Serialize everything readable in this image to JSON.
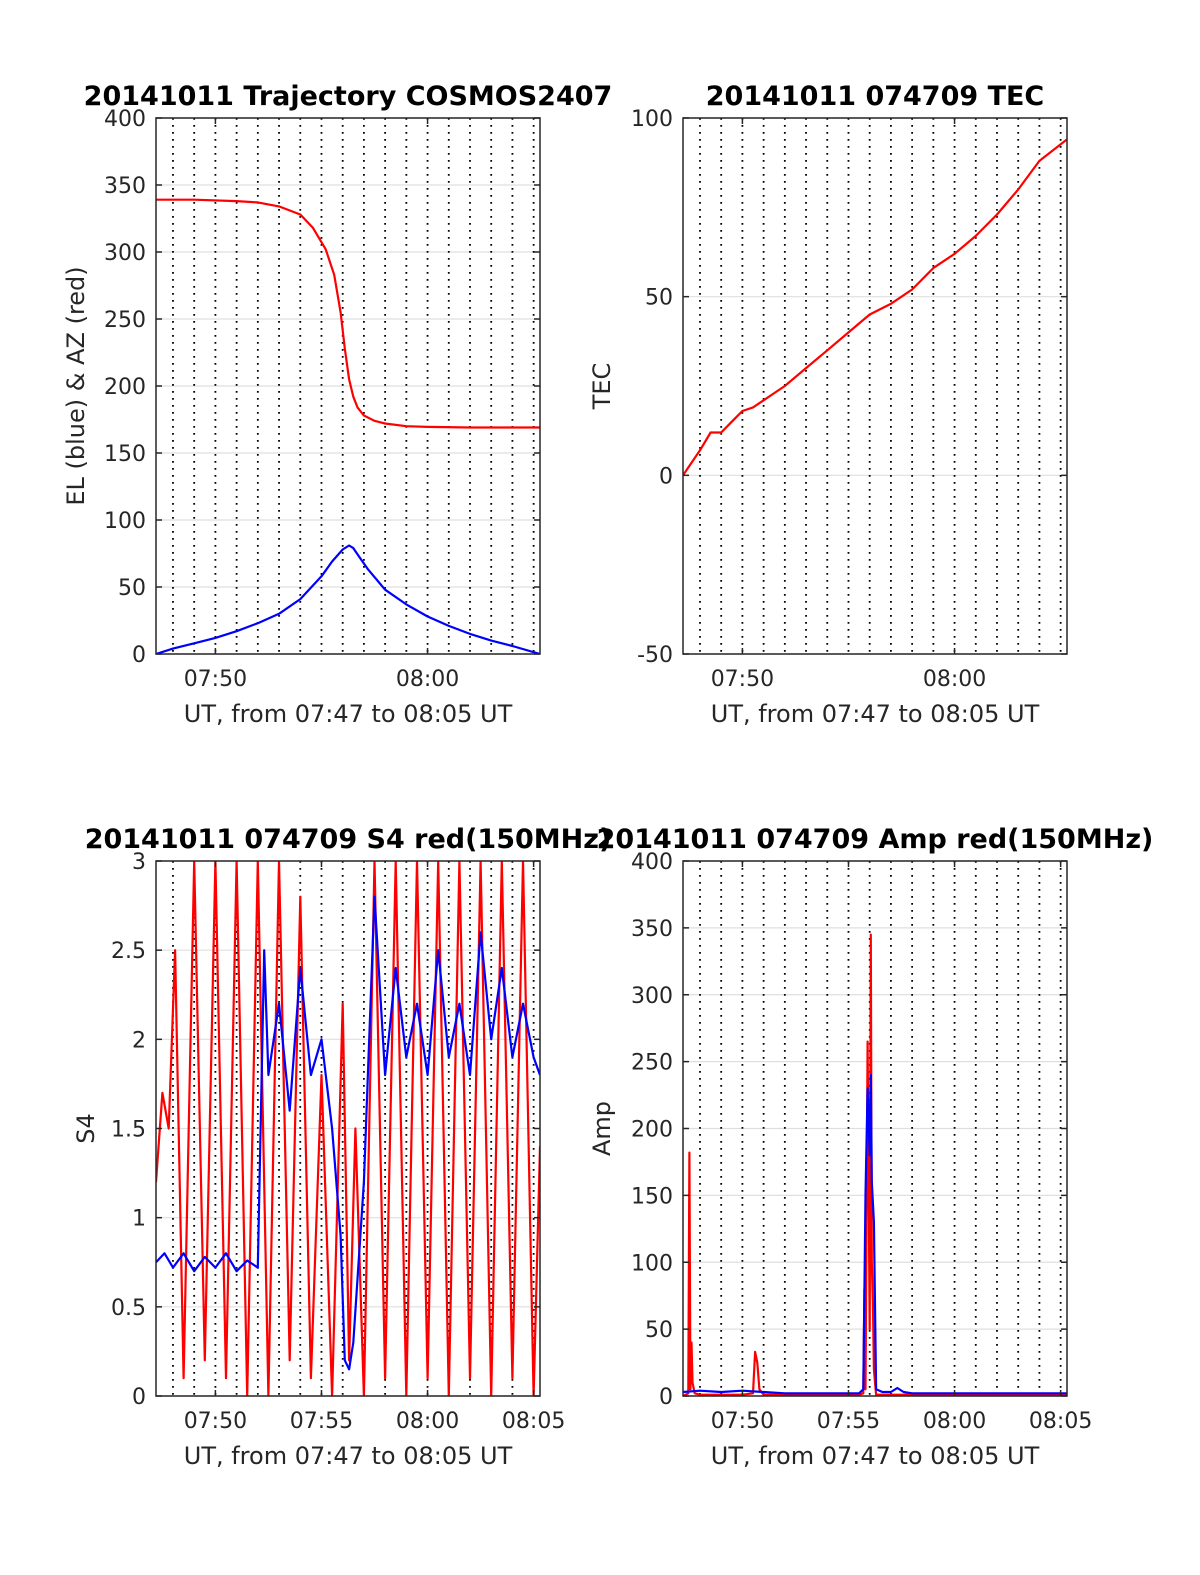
{
  "colors": {
    "el": "#0000ff",
    "az": "#ff0000",
    "red": "#ff0000",
    "blue": "#0000ff",
    "axis": "#262626",
    "grid": "#dfdfdf"
  },
  "chart_data": [
    {
      "id": "trajectory",
      "type": "line",
      "title": "20141011 Trajectory COSMOS2407",
      "xlabel": "UT, from 07:47 to 08:05 UT",
      "ylabel": "EL (blue) & AZ (red)",
      "xlim": [
        467.2,
        485.3
      ],
      "ylim": [
        0,
        400
      ],
      "xticks": [
        {
          "v": 470,
          "label": "07:50"
        },
        {
          "v": 480,
          "label": "08:00"
        }
      ],
      "yticks": [
        {
          "v": 0,
          "label": "0"
        },
        {
          "v": 50,
          "label": "50"
        },
        {
          "v": 100,
          "label": "100"
        },
        {
          "v": 150,
          "label": "150"
        },
        {
          "v": 200,
          "label": "200"
        },
        {
          "v": 250,
          "label": "250"
        },
        {
          "v": 300,
          "label": "300"
        },
        {
          "v": 350,
          "label": "350"
        },
        {
          "v": 400,
          "label": "400"
        }
      ],
      "minor_x_grid": [
        468,
        469,
        471,
        472,
        473,
        474,
        475,
        476,
        477,
        478,
        479,
        481,
        482,
        483,
        484,
        485
      ],
      "series": [
        {
          "color": "#0000ff",
          "x": [
            467.2,
            468,
            469,
            470,
            471,
            472,
            473,
            474,
            475,
            475.5,
            476,
            476.3,
            476.5,
            476.8,
            477.2,
            478,
            479,
            480,
            481,
            482,
            483,
            484,
            485.3
          ],
          "y": [
            0,
            4,
            8,
            12,
            17,
            23,
            30,
            41,
            58,
            69,
            78,
            81,
            79,
            72,
            63,
            48,
            37,
            28,
            21,
            15,
            10,
            6,
            0
          ]
        },
        {
          "color": "#ff0000",
          "x": [
            467.2,
            469,
            471,
            472,
            473,
            474,
            474.6,
            475.2,
            475.6,
            475.9,
            476.1,
            476.3,
            476.5,
            476.7,
            477,
            477.5,
            478,
            479,
            480,
            482,
            485.3
          ],
          "y": [
            339,
            339,
            338,
            337,
            334,
            328,
            318,
            302,
            283,
            255,
            228,
            205,
            192,
            184,
            178,
            174,
            172,
            170,
            169.5,
            169,
            169
          ]
        }
      ]
    },
    {
      "id": "tec",
      "type": "line",
      "title": "20141011 074709 TEC",
      "xlabel": "UT, from 07:47 to 08:05 UT",
      "ylabel": "TEC",
      "xlim": [
        467.2,
        485.3
      ],
      "ylim": [
        -50,
        100
      ],
      "xticks": [
        {
          "v": 470,
          "label": "07:50"
        },
        {
          "v": 480,
          "label": "08:00"
        }
      ],
      "yticks": [
        {
          "v": -50,
          "label": "-50"
        },
        {
          "v": 0,
          "label": "0"
        },
        {
          "v": 50,
          "label": "50"
        },
        {
          "v": 100,
          "label": "100"
        }
      ],
      "minor_x_grid": [
        468,
        469,
        471,
        472,
        473,
        474,
        475,
        476,
        477,
        478,
        479,
        481,
        482,
        483,
        484,
        485
      ],
      "series": [
        {
          "color": "#ff0000",
          "x": [
            467.2,
            468,
            468.5,
            469,
            469.5,
            470,
            470.5,
            471,
            471.5,
            472,
            473,
            474,
            475,
            476,
            477,
            478,
            479,
            480,
            481,
            482,
            483,
            484,
            485.3
          ],
          "y": [
            0,
            7,
            12,
            12,
            15,
            18,
            19,
            21,
            23,
            25,
            30,
            35,
            40,
            45,
            48,
            52,
            58,
            62,
            67,
            73,
            80,
            88,
            94
          ]
        }
      ]
    },
    {
      "id": "s4",
      "type": "line",
      "title": "20141011 074709 S4 red(150MHz)",
      "xlabel": "UT, from 07:47 to 08:05 UT",
      "ylabel": "S4",
      "xlim": [
        467.2,
        485.3
      ],
      "ylim": [
        0,
        3
      ],
      "xticks": [
        {
          "v": 470,
          "label": "07:50"
        },
        {
          "v": 475,
          "label": "07:55"
        },
        {
          "v": 480,
          "label": "08:00"
        },
        {
          "v": 485,
          "label": "08:05"
        }
      ],
      "yticks": [
        {
          "v": 0,
          "label": "0"
        },
        {
          "v": 0.5,
          "label": "0.5"
        },
        {
          "v": 1,
          "label": "1"
        },
        {
          "v": 1.5,
          "label": "1.5"
        },
        {
          "v": 2,
          "label": "2"
        },
        {
          "v": 2.5,
          "label": "2.5"
        },
        {
          "v": 3,
          "label": "3"
        }
      ],
      "minor_x_grid": [
        468,
        469,
        471,
        472,
        473,
        474,
        476,
        477,
        478,
        479,
        481,
        482,
        483,
        484
      ],
      "series": [
        {
          "color": "#ff0000",
          "x": [
            467.2,
            467.5,
            467.8,
            468.1,
            468.5,
            469,
            469.5,
            470,
            470.5,
            471,
            471.5,
            472,
            472.5,
            473,
            473.5,
            474,
            474.5,
            475,
            475.5,
            476,
            476.3,
            476.6,
            477,
            477.5,
            478,
            478.5,
            479,
            479.5,
            480,
            480.5,
            481,
            481.5,
            482,
            482.5,
            483,
            483.5,
            484,
            484.5,
            485,
            485.3
          ],
          "y": [
            1.2,
            1.7,
            1.5,
            2.5,
            0.1,
            3.0,
            0.2,
            3.0,
            0.1,
            3.0,
            0.0,
            3.0,
            0.0,
            3.0,
            0.2,
            2.8,
            0.1,
            1.8,
            0.0,
            2.2,
            0.2,
            1.5,
            0.0,
            3.0,
            0.1,
            3.0,
            0.0,
            3.0,
            0.1,
            3.0,
            0.0,
            3.0,
            0.1,
            3.0,
            0.0,
            3.0,
            0.1,
            3.0,
            0.0,
            1.4
          ]
        },
        {
          "color": "#0000ff",
          "x": [
            467.2,
            467.6,
            468,
            468.5,
            469,
            469.5,
            470,
            470.5,
            471,
            471.5,
            472,
            472.3,
            472.5,
            473,
            473.5,
            474,
            474.5,
            475,
            475.5,
            475.9,
            476.1,
            476.3,
            476.5,
            477,
            477.5,
            478,
            478.5,
            479,
            479.5,
            480,
            480.5,
            481,
            481.5,
            482,
            482.5,
            483,
            483.5,
            484,
            484.5,
            485,
            485.3
          ],
          "y": [
            0.75,
            0.8,
            0.72,
            0.8,
            0.7,
            0.78,
            0.72,
            0.8,
            0.7,
            0.76,
            0.72,
            2.5,
            1.8,
            2.2,
            1.6,
            2.4,
            1.8,
            2.0,
            1.5,
            0.9,
            0.2,
            0.15,
            0.3,
            1.2,
            2.8,
            1.8,
            2.4,
            1.9,
            2.2,
            1.8,
            2.5,
            1.9,
            2.2,
            1.8,
            2.6,
            2.0,
            2.4,
            1.9,
            2.2,
            1.9,
            1.8
          ]
        }
      ]
    },
    {
      "id": "amp",
      "type": "line",
      "title": "20141011 074709 Amp red(150MHz)",
      "xlabel": "UT, from 07:47 to 08:05 UT",
      "ylabel": "Amp",
      "xlim": [
        467.2,
        485.3
      ],
      "ylim": [
        0,
        400
      ],
      "xticks": [
        {
          "v": 470,
          "label": "07:50"
        },
        {
          "v": 475,
          "label": "07:55"
        },
        {
          "v": 480,
          "label": "08:00"
        },
        {
          "v": 485,
          "label": "08:05"
        }
      ],
      "yticks": [
        {
          "v": 0,
          "label": "0"
        },
        {
          "v": 50,
          "label": "50"
        },
        {
          "v": 100,
          "label": "100"
        },
        {
          "v": 150,
          "label": "150"
        },
        {
          "v": 200,
          "label": "200"
        },
        {
          "v": 250,
          "label": "250"
        },
        {
          "v": 300,
          "label": "300"
        },
        {
          "v": 350,
          "label": "350"
        },
        {
          "v": 400,
          "label": "400"
        }
      ],
      "minor_x_grid": [
        468,
        469,
        471,
        472,
        473,
        474,
        476,
        477,
        478,
        479,
        481,
        482,
        483,
        484
      ],
      "series": [
        {
          "color": "#ff0000",
          "x": [
            467.2,
            467.45,
            467.5,
            467.55,
            467.6,
            467.65,
            467.75,
            468,
            469,
            470,
            470.5,
            470.6,
            470.7,
            470.8,
            471,
            472,
            473,
            474,
            475,
            475.5,
            475.7,
            475.75,
            475.8,
            475.9,
            476,
            476.05,
            476.1,
            476.15,
            476.2,
            476.3,
            477,
            478,
            480,
            482,
            485.3
          ],
          "y": [
            0,
            2,
            182,
            5,
            40,
            10,
            2,
            1,
            1,
            1,
            2,
            33,
            25,
            5,
            1,
            1,
            1,
            1,
            1,
            1,
            2,
            80,
            5,
            265,
            50,
            345,
            100,
            70,
            20,
            1,
            1,
            1,
            1,
            1,
            1
          ]
        },
        {
          "color": "#0000ff",
          "x": [
            467.2,
            468,
            469,
            470,
            471,
            472,
            473,
            474,
            475,
            475.5,
            475.7,
            475.8,
            475.9,
            476,
            476.05,
            476.1,
            476.2,
            476.3,
            476.6,
            477,
            477.3,
            477.6,
            478,
            479,
            480,
            482,
            484,
            485.3
          ],
          "y": [
            3,
            4,
            3,
            4,
            3,
            2,
            2,
            2,
            2,
            2,
            5,
            150,
            230,
            180,
            240,
            160,
            130,
            5,
            3,
            3,
            6,
            3,
            2,
            2,
            2,
            2,
            2,
            2
          ]
        }
      ]
    }
  ]
}
